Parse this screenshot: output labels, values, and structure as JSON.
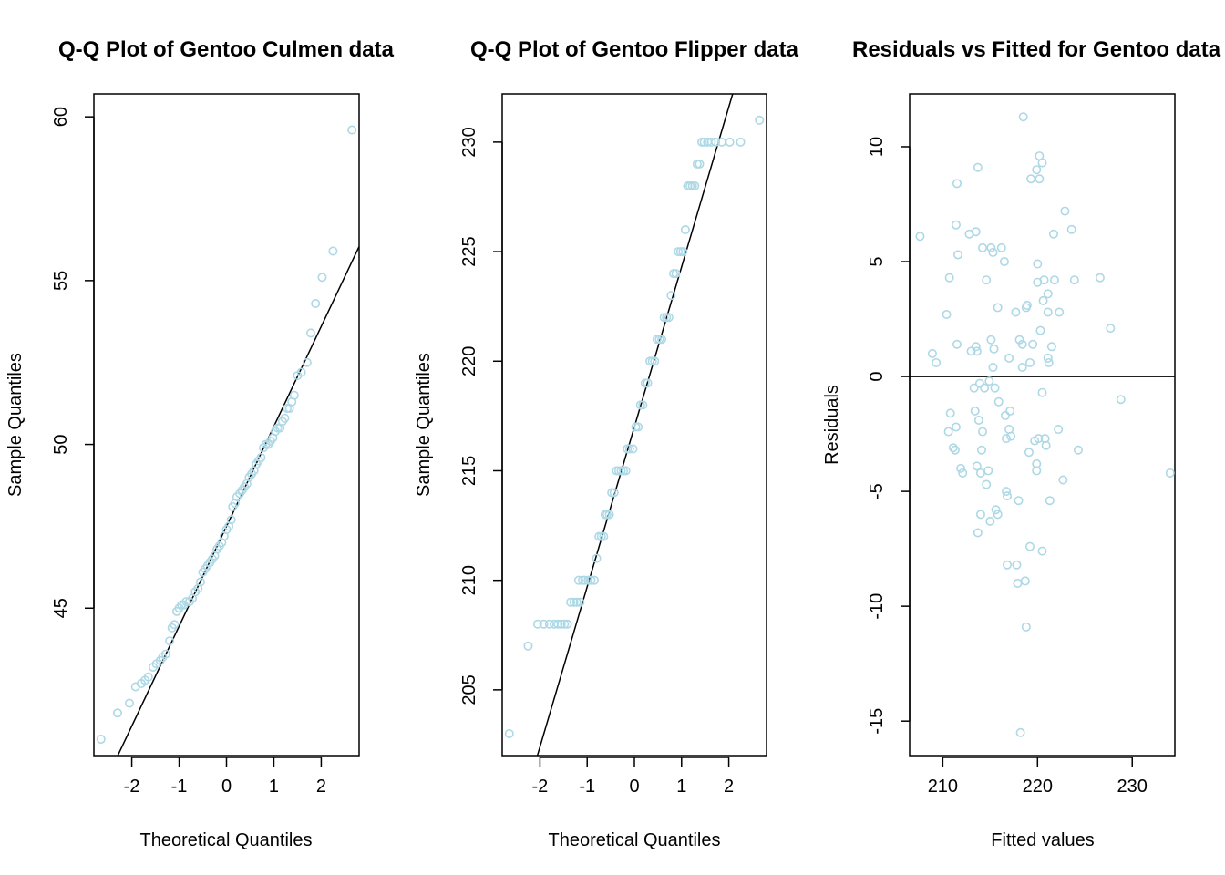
{
  "colors": {
    "point": "#add8e6",
    "line": "#000000"
  },
  "panels": [
    {
      "title": "Q-Q Plot of Gentoo Culmen data",
      "xlabel": "Theoretical Quantiles",
      "ylabel": "Sample Quantiles",
      "x_ticks": [
        "-2",
        "-1",
        "0",
        "1",
        "2"
      ],
      "y_ticks": [
        "45",
        "50",
        "55",
        "60"
      ]
    },
    {
      "title": "Q-Q Plot of Gentoo Flipper data",
      "xlabel": "Theoretical Quantiles",
      "ylabel": "Sample Quantiles",
      "x_ticks": [
        "-2",
        "-1",
        "0",
        "1",
        "2"
      ],
      "y_ticks": [
        "205",
        "210",
        "215",
        "220",
        "225",
        "230"
      ]
    },
    {
      "title": "Residuals vs Fitted for Gentoo data",
      "xlabel": "Fitted values",
      "ylabel": "Residuals",
      "x_ticks": [
        "210",
        "220",
        "230"
      ],
      "y_ticks": [
        "-15",
        "-10",
        "-5",
        "0",
        "5",
        "10"
      ]
    }
  ],
  "chart_data": [
    {
      "type": "scatter",
      "title": "Q-Q Plot of Gentoo Culmen data",
      "xlabel": "Theoretical Quantiles",
      "ylabel": "Sample Quantiles",
      "xlim": [
        -2.8,
        2.8
      ],
      "ylim": [
        40.5,
        60.7
      ],
      "x_ticks": [
        -2,
        -1,
        0,
        1,
        2
      ],
      "y_ticks": [
        45,
        50,
        55,
        60
      ],
      "reference_line": {
        "slope": 3.05,
        "intercept": 47.5
      },
      "points": [
        [
          -2.65,
          41.0
        ],
        [
          -2.3,
          41.8
        ],
        [
          -2.05,
          42.1
        ],
        [
          -1.92,
          42.6
        ],
        [
          -1.8,
          42.7
        ],
        [
          -1.72,
          42.8
        ],
        [
          -1.65,
          42.9
        ],
        [
          -1.55,
          43.2
        ],
        [
          -1.48,
          43.3
        ],
        [
          -1.4,
          43.4
        ],
        [
          -1.35,
          43.5
        ],
        [
          -1.28,
          43.6
        ],
        [
          -1.2,
          44.0
        ],
        [
          -1.15,
          44.4
        ],
        [
          -1.1,
          44.5
        ],
        [
          -1.05,
          44.9
        ],
        [
          -1.0,
          45.0
        ],
        [
          -0.95,
          45.1
        ],
        [
          -0.9,
          45.1
        ],
        [
          -0.85,
          45.2
        ],
        [
          -0.78,
          45.2
        ],
        [
          -0.72,
          45.3
        ],
        [
          -0.66,
          45.5
        ],
        [
          -0.6,
          45.6
        ],
        [
          -0.55,
          45.8
        ],
        [
          -0.5,
          46.1
        ],
        [
          -0.45,
          46.2
        ],
        [
          -0.4,
          46.3
        ],
        [
          -0.35,
          46.4
        ],
        [
          -0.3,
          46.5
        ],
        [
          -0.25,
          46.6
        ],
        [
          -0.2,
          46.8
        ],
        [
          -0.15,
          46.9
        ],
        [
          -0.1,
          47.0
        ],
        [
          -0.05,
          47.2
        ],
        [
          0.0,
          47.4
        ],
        [
          0.05,
          47.5
        ],
        [
          0.1,
          47.7
        ],
        [
          0.13,
          48.1
        ],
        [
          0.18,
          48.2
        ],
        [
          0.22,
          48.4
        ],
        [
          0.28,
          48.5
        ],
        [
          0.33,
          48.6
        ],
        [
          0.38,
          48.7
        ],
        [
          0.43,
          48.8
        ],
        [
          0.48,
          49.0
        ],
        [
          0.53,
          49.1
        ],
        [
          0.58,
          49.2
        ],
        [
          0.63,
          49.4
        ],
        [
          0.68,
          49.5
        ],
        [
          0.73,
          49.6
        ],
        [
          0.78,
          49.9
        ],
        [
          0.83,
          50.0
        ],
        [
          0.88,
          50.0
        ],
        [
          0.93,
          50.1
        ],
        [
          0.98,
          50.2
        ],
        [
          1.03,
          50.4
        ],
        [
          1.08,
          50.5
        ],
        [
          1.13,
          50.5
        ],
        [
          1.18,
          50.7
        ],
        [
          1.23,
          50.8
        ],
        [
          1.28,
          51.1
        ],
        [
          1.33,
          51.1
        ],
        [
          1.38,
          51.3
        ],
        [
          1.43,
          51.5
        ],
        [
          1.5,
          52.1
        ],
        [
          1.58,
          52.2
        ],
        [
          1.7,
          52.5
        ],
        [
          1.78,
          53.4
        ],
        [
          1.88,
          54.3
        ],
        [
          2.02,
          55.1
        ],
        [
          2.25,
          55.9
        ],
        [
          2.65,
          59.6
        ]
      ]
    },
    {
      "type": "scatter",
      "title": "Q-Q Plot of Gentoo Flipper data",
      "xlabel": "Theoretical Quantiles",
      "ylabel": "Sample Quantiles",
      "xlim": [
        -2.8,
        2.8
      ],
      "ylim": [
        202,
        232.2
      ],
      "x_ticks": [
        -2,
        -1,
        0,
        1,
        2
      ],
      "y_ticks": [
        205,
        210,
        215,
        220,
        225,
        230
      ],
      "reference_line": {
        "slope": 7.3,
        "intercept": 217.0
      },
      "points": [
        [
          -2.65,
          203
        ],
        [
          -2.25,
          207
        ],
        [
          -2.05,
          208
        ],
        [
          -1.92,
          208
        ],
        [
          -1.8,
          208
        ],
        [
          -1.7,
          208
        ],
        [
          -1.62,
          208
        ],
        [
          -1.55,
          208
        ],
        [
          -1.48,
          208
        ],
        [
          -1.42,
          208
        ],
        [
          -1.35,
          209
        ],
        [
          -1.28,
          209
        ],
        [
          -1.22,
          209
        ],
        [
          -1.15,
          209
        ],
        [
          -1.18,
          210
        ],
        [
          -1.1,
          210
        ],
        [
          -1.05,
          210
        ],
        [
          -0.98,
          210
        ],
        [
          -0.92,
          210
        ],
        [
          -0.85,
          210
        ],
        [
          -0.8,
          211
        ],
        [
          -0.75,
          212
        ],
        [
          -0.7,
          212
        ],
        [
          -0.65,
          212
        ],
        [
          -0.62,
          213
        ],
        [
          -0.58,
          213
        ],
        [
          -0.53,
          213
        ],
        [
          -0.48,
          214
        ],
        [
          -0.43,
          214
        ],
        [
          -0.38,
          215
        ],
        [
          -0.33,
          215
        ],
        [
          -0.28,
          215
        ],
        [
          -0.23,
          215
        ],
        [
          -0.18,
          215
        ],
        [
          -0.15,
          216
        ],
        [
          -0.1,
          216
        ],
        [
          -0.03,
          216
        ],
        [
          0.03,
          217
        ],
        [
          0.08,
          217
        ],
        [
          0.13,
          218
        ],
        [
          0.18,
          218
        ],
        [
          0.23,
          219
        ],
        [
          0.28,
          219
        ],
        [
          0.33,
          220
        ],
        [
          0.38,
          220
        ],
        [
          0.43,
          220
        ],
        [
          0.48,
          221
        ],
        [
          0.53,
          221
        ],
        [
          0.58,
          221
        ],
        [
          0.63,
          222
        ],
        [
          0.68,
          222
        ],
        [
          0.73,
          222
        ],
        [
          0.78,
          223
        ],
        [
          0.83,
          224
        ],
        [
          0.88,
          224
        ],
        [
          0.93,
          225
        ],
        [
          0.98,
          225
        ],
        [
          1.03,
          225
        ],
        [
          1.08,
          226
        ],
        [
          1.13,
          228
        ],
        [
          1.18,
          228
        ],
        [
          1.23,
          228
        ],
        [
          1.28,
          228
        ],
        [
          1.33,
          229
        ],
        [
          1.38,
          229
        ],
        [
          1.43,
          230
        ],
        [
          1.48,
          230
        ],
        [
          1.55,
          230
        ],
        [
          1.63,
          230
        ],
        [
          1.72,
          230
        ],
        [
          1.85,
          230
        ],
        [
          2.02,
          230
        ],
        [
          2.25,
          230
        ],
        [
          2.65,
          231
        ]
      ]
    },
    {
      "type": "scatter",
      "title": "Residuals vs Fitted for Gentoo data",
      "xlabel": "Fitted values",
      "ylabel": "Residuals",
      "xlim": [
        206.5,
        234.5
      ],
      "ylim": [
        -16.5,
        12.3
      ],
      "x_ticks": [
        210,
        220,
        230
      ],
      "y_ticks": [
        -15,
        -10,
        -5,
        0,
        5,
        10
      ],
      "reference_line": {
        "slope": 0,
        "intercept": 0
      },
      "points": [
        [
          207.6,
          6.1
        ],
        [
          208.9,
          1.0
        ],
        [
          209.3,
          0.6
        ],
        [
          210.4,
          2.7
        ],
        [
          210.7,
          4.3
        ],
        [
          210.6,
          -2.4
        ],
        [
          210.8,
          -1.6
        ],
        [
          211.1,
          -3.1
        ],
        [
          211.3,
          -3.2
        ],
        [
          211.4,
          -2.2
        ],
        [
          211.4,
          6.6
        ],
        [
          211.5,
          8.4
        ],
        [
          211.6,
          5.3
        ],
        [
          211.5,
          1.4
        ],
        [
          211.9,
          -4.0
        ],
        [
          212.1,
          -4.2
        ],
        [
          212.8,
          6.2
        ],
        [
          213.0,
          1.1
        ],
        [
          213.3,
          -0.5
        ],
        [
          213.4,
          -1.5
        ],
        [
          213.5,
          6.3
        ],
        [
          213.5,
          1.3
        ],
        [
          213.6,
          1.1
        ],
        [
          213.7,
          9.1
        ],
        [
          213.6,
          -3.9
        ],
        [
          213.7,
          -6.8
        ],
        [
          213.8,
          -1.9
        ],
        [
          213.9,
          -0.3
        ],
        [
          214.0,
          -4.2
        ],
        [
          214.1,
          -3.2
        ],
        [
          214.0,
          -6.0
        ],
        [
          214.2,
          -2.4
        ],
        [
          214.2,
          5.6
        ],
        [
          214.4,
          -0.5
        ],
        [
          214.6,
          4.2
        ],
        [
          214.6,
          -4.7
        ],
        [
          214.8,
          -4.1
        ],
        [
          214.9,
          -0.2
        ],
        [
          215.0,
          -6.3
        ],
        [
          215.1,
          1.6
        ],
        [
          215.1,
          5.6
        ],
        [
          215.3,
          5.4
        ],
        [
          215.3,
          0.4
        ],
        [
          215.4,
          1.2
        ],
        [
          215.5,
          -0.5
        ],
        [
          215.6,
          -5.8
        ],
        [
          215.8,
          -6.0
        ],
        [
          215.8,
          3.0
        ],
        [
          215.9,
          -1.1
        ],
        [
          216.2,
          5.6
        ],
        [
          216.5,
          5.0
        ],
        [
          216.6,
          -1.7
        ],
        [
          216.7,
          -2.7
        ],
        [
          216.7,
          -5.0
        ],
        [
          216.8,
          -5.2
        ],
        [
          216.8,
          -8.2
        ],
        [
          217.0,
          -2.3
        ],
        [
          217.0,
          0.8
        ],
        [
          217.1,
          -1.5
        ],
        [
          217.2,
          -2.6
        ],
        [
          217.7,
          2.8
        ],
        [
          217.8,
          -8.2
        ],
        [
          217.9,
          -9.0
        ],
        [
          218.0,
          -5.4
        ],
        [
          218.1,
          1.6
        ],
        [
          218.2,
          -15.5
        ],
        [
          218.4,
          1.4
        ],
        [
          218.4,
          0.4
        ],
        [
          218.5,
          11.3
        ],
        [
          218.7,
          -8.9
        ],
        [
          218.8,
          -10.9
        ],
        [
          218.8,
          3.0
        ],
        [
          218.9,
          3.1
        ],
        [
          219.1,
          -3.3
        ],
        [
          219.2,
          0.6
        ],
        [
          219.2,
          -7.4
        ],
        [
          219.3,
          8.6
        ],
        [
          219.5,
          1.4
        ],
        [
          219.7,
          -2.8
        ],
        [
          219.9,
          9.0
        ],
        [
          219.9,
          -3.8
        ],
        [
          219.9,
          -4.1
        ],
        [
          220.0,
          4.9
        ],
        [
          220.0,
          4.1
        ],
        [
          220.1,
          -2.7
        ],
        [
          220.2,
          8.6
        ],
        [
          220.2,
          9.6
        ],
        [
          220.3,
          2.0
        ],
        [
          220.5,
          -7.6
        ],
        [
          220.5,
          -0.7
        ],
        [
          220.5,
          9.3
        ],
        [
          220.6,
          3.3
        ],
        [
          220.7,
          4.2
        ],
        [
          220.8,
          -2.7
        ],
        [
          220.9,
          -3.0
        ],
        [
          221.1,
          2.8
        ],
        [
          221.1,
          3.6
        ],
        [
          221.1,
          0.8
        ],
        [
          221.2,
          0.6
        ],
        [
          221.3,
          -5.4
        ],
        [
          221.5,
          1.3
        ],
        [
          221.7,
          6.2
        ],
        [
          221.8,
          4.2
        ],
        [
          222.3,
          2.8
        ],
        [
          222.2,
          -2.3
        ],
        [
          222.7,
          -4.5
        ],
        [
          222.9,
          7.2
        ],
        [
          223.6,
          6.4
        ],
        [
          223.9,
          4.2
        ],
        [
          224.3,
          -3.2
        ],
        [
          226.6,
          4.3
        ],
        [
          227.7,
          2.1
        ],
        [
          228.8,
          -1.0
        ],
        [
          234.0,
          -4.2
        ]
      ]
    }
  ]
}
